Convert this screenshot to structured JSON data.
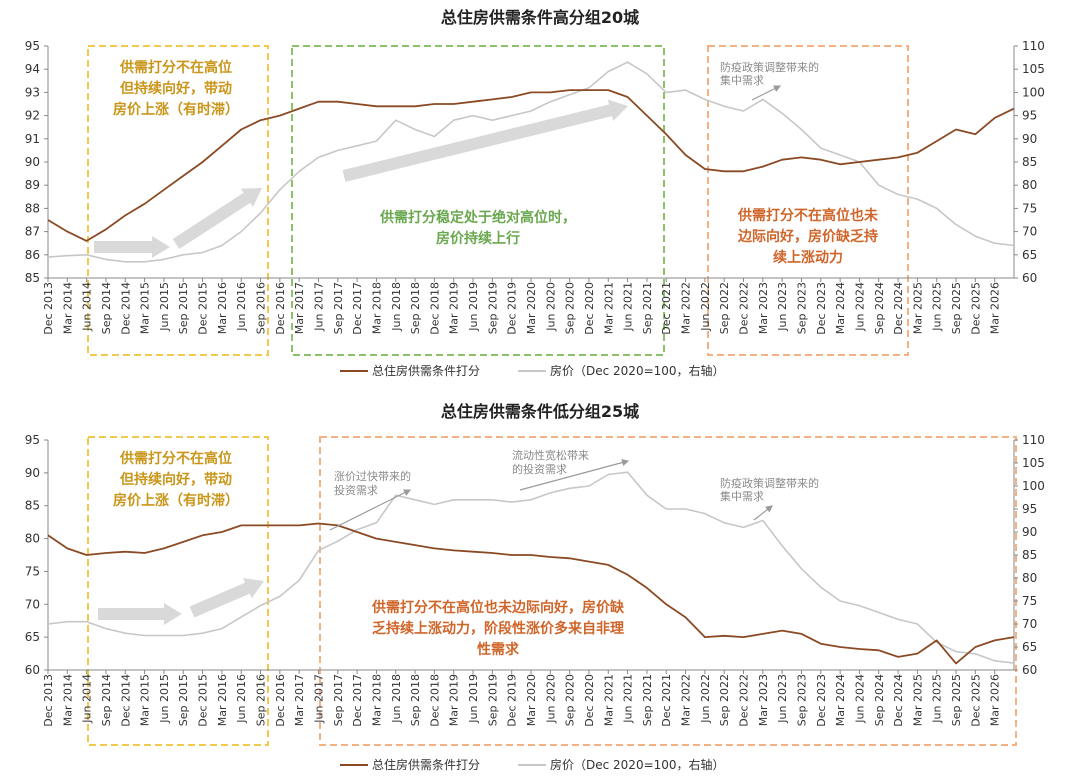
{
  "colors": {
    "score": "#8B4A24",
    "price": "#C7C7C7",
    "yellow": "#F2C94C",
    "yellow_text": "#C9961A",
    "green": "#8CC26A",
    "green_text": "#6AA84F",
    "orange": "#F4B183",
    "orange_text": "#D0652A",
    "grey_text": "#8A8A8A",
    "arrow": "#D9D9D9"
  },
  "x_labels": [
    "Dec 2013",
    "Mar 2014",
    "Jun 2014",
    "Sep 2014",
    "Dec 2014",
    "Mar 2015",
    "Jun 2015",
    "Sep 2015",
    "Dec 2015",
    "Mar 2016",
    "Jun 2016",
    "Sep 2016",
    "Dec 2016",
    "Mar 2017",
    "Jun 2017",
    "Sep 2017",
    "Dec 2017",
    "Mar 2018",
    "Jun 2018",
    "Sep 2018",
    "Dec 2018",
    "Mar 2019",
    "Jun 2019",
    "Sep 2019",
    "Dec 2019",
    "Mar 2020",
    "Jun 2020",
    "Sep 2020",
    "Dec 2020",
    "Mar 2021",
    "Jun 2021",
    "Sep 2021",
    "Dec 2021",
    "Mar 2022",
    "Jun 2022",
    "Sep 2022",
    "Dec 2022",
    "Mar 2023",
    "Jun 2023",
    "Sep 2023",
    "Dec 2023",
    "Mar 2024",
    "Jun 2024",
    "Sep 2024",
    "Dec 2024",
    "Mar 2025",
    "Jun 2025",
    "Sep 2025",
    "Dec 2025",
    "Mar 2026"
  ],
  "x_labels_bottom": [
    "Dec 2013",
    "Mar 2014",
    "Jun 2014",
    "Sep 2014",
    "Dec 2014",
    "Mar 2015",
    "Jun 2015",
    "Sep 2015",
    "Dec 2015",
    "Mar 2016",
    "Jun 2016",
    "Sep 2016",
    "Dec 2016",
    "Mar 2017",
    "Jun 2017",
    "Sep 2017",
    "Dec 2017",
    "Mar 2018",
    "Jun 2018",
    "Sep 2018",
    "Dec 2018",
    "Mar 2019",
    "Jun 2019",
    "Sep 2019",
    "Dec 2019",
    "Mar 2020",
    "Jun 2020",
    "Sep 2020",
    "Dec 2020",
    "Mar 2021",
    "Jun 2021",
    "Sep 2021",
    "Dec 2021",
    "Mar 2022",
    "Jun 2022",
    "Sep 2022",
    "Dec 2022",
    "Mar 2023",
    "Jun 2023",
    "Sep 2023",
    "Dec 2023",
    "Mar 2024",
    "Jun 2024",
    "Sep 2024",
    "Dec 2024",
    "Mar 2025",
    "Jun 2025",
    "Sep 2025",
    "Dec 2025",
    "Mar 2026"
  ],
  "chart_data": [
    {
      "type": "line",
      "title": "总住房供需条件高分组20城",
      "x": [
        "2013-12",
        "2014-03",
        "2014-06",
        "2014-09",
        "2014-12",
        "2015-03",
        "2015-06",
        "2015-09",
        "2015-12",
        "2016-03",
        "2016-06",
        "2016-09",
        "2016-12",
        "2017-03",
        "2017-06",
        "2017-09",
        "2017-12",
        "2018-03",
        "2018-06",
        "2018-09",
        "2018-12",
        "2019-03",
        "2019-06",
        "2019-09",
        "2019-12",
        "2020-03",
        "2020-06",
        "2020-09",
        "2020-12",
        "2021-03",
        "2021-06",
        "2021-09",
        "2021-12",
        "2022-03",
        "2022-06",
        "2022-09",
        "2022-12",
        "2023-03",
        "2023-06",
        "2023-09",
        "2023-12",
        "2024-03",
        "2024-06",
        "2024-09",
        "2024-12",
        "2025-03",
        "2025-06",
        "2025-09",
        "2025-12",
        "2026-03",
        "2026-04"
      ],
      "ylim": [
        85,
        95
      ],
      "y2lim": [
        60,
        110
      ],
      "yticks": [
        85,
        86,
        87,
        88,
        89,
        90,
        91,
        92,
        93,
        94,
        95
      ],
      "y2ticks": [
        60,
        65,
        70,
        75,
        80,
        85,
        90,
        95,
        100,
        105,
        110
      ],
      "series": [
        {
          "name": "总住房供需条件打分",
          "axis": "left",
          "values": [
            87.5,
            87.0,
            86.6,
            87.1,
            87.7,
            88.2,
            88.8,
            89.4,
            90.0,
            90.7,
            91.4,
            91.8,
            92.0,
            92.3,
            92.6,
            92.6,
            92.5,
            92.4,
            92.4,
            92.4,
            92.5,
            92.5,
            92.6,
            92.7,
            92.8,
            93.0,
            93.0,
            93.1,
            93.1,
            93.1,
            92.8,
            92.0,
            91.2,
            90.3,
            89.7,
            89.6,
            89.6,
            89.8,
            90.1,
            90.2,
            90.1,
            89.9,
            90.0,
            90.1,
            90.2,
            90.4,
            90.9,
            91.4,
            91.2,
            91.9,
            92.3
          ]
        },
        {
          "name": "房价（Dec 2020=100，右轴）",
          "axis": "right",
          "values": [
            64.5,
            64.8,
            65.0,
            64.0,
            63.5,
            63.5,
            64.0,
            65.0,
            65.5,
            67.0,
            70.0,
            74.0,
            79.0,
            83.0,
            86.0,
            87.5,
            88.5,
            89.5,
            94.0,
            92.0,
            90.5,
            94.0,
            95.0,
            94.0,
            95.0,
            96.0,
            98.0,
            99.5,
            101.0,
            104.5,
            106.5,
            104.0,
            100.0,
            100.5,
            98.5,
            97.0,
            96.0,
            98.5,
            95.5,
            92.0,
            88.0,
            86.5,
            85.0,
            80.0,
            78.0,
            77.0,
            75.0,
            71.5,
            69.0,
            67.5,
            67.0
          ]
        }
      ],
      "annotations": [
        {
          "text": [
            "供需打分不在高位",
            "但持续向好，带动",
            "房价上涨（有时滞）"
          ],
          "color": "yellow_text"
        },
        {
          "text": [
            "供需打分稳定处于绝对高位时，",
            "房价持续上行"
          ],
          "color": "green_text"
        },
        {
          "text": [
            "供需打分不在高位也未",
            "边际向好，房价缺乏持",
            "续上涨动力"
          ],
          "color": "orange_text"
        },
        {
          "text": [
            "防疫政策调整带来的",
            "集中需求"
          ],
          "color": "grey_text"
        }
      ]
    },
    {
      "type": "line",
      "title": "总住房供需条件低分组25城",
      "x": [
        "2013-12",
        "2014-03",
        "2014-06",
        "2014-09",
        "2014-12",
        "2015-03",
        "2015-06",
        "2015-09",
        "2015-12",
        "2016-03",
        "2016-06",
        "2016-09",
        "2016-12",
        "2017-03",
        "2017-06",
        "2017-09",
        "2017-12",
        "2018-03",
        "2018-06",
        "2018-09",
        "2018-12",
        "2019-03",
        "2019-06",
        "2019-09",
        "2019-12",
        "2020-03",
        "2020-06",
        "2020-09",
        "2020-12",
        "2021-03",
        "2021-06",
        "2021-09",
        "2021-12",
        "2022-03",
        "2022-06",
        "2022-09",
        "2022-12",
        "2023-03",
        "2023-06",
        "2023-09",
        "2023-12",
        "2024-03",
        "2024-06",
        "2024-09",
        "2024-12",
        "2025-03",
        "2025-06",
        "2025-09",
        "2025-12",
        "2026-03",
        "2026-04"
      ],
      "ylim": [
        60,
        95
      ],
      "y2lim": [
        60,
        110
      ],
      "yticks": [
        60,
        65,
        70,
        75,
        80,
        85,
        90,
        95
      ],
      "y2ticks": [
        60,
        65,
        70,
        75,
        80,
        85,
        90,
        95,
        100,
        105,
        110
      ],
      "series": [
        {
          "name": "总住房供需条件打分",
          "axis": "left",
          "values": [
            80.5,
            78.5,
            77.5,
            77.8,
            78.0,
            77.8,
            78.5,
            79.5,
            80.5,
            81.0,
            82.0,
            82.0,
            82.0,
            82.0,
            82.3,
            82.0,
            81.0,
            80.0,
            79.5,
            79.0,
            78.5,
            78.2,
            78.0,
            77.8,
            77.5,
            77.5,
            77.2,
            77.0,
            76.5,
            76.0,
            74.5,
            72.5,
            70.0,
            68.0,
            65.0,
            65.2,
            65.0,
            65.5,
            66.0,
            65.5,
            64.0,
            63.5,
            63.2,
            63.0,
            62.0,
            62.5,
            64.5,
            61.0,
            63.5,
            64.5,
            65.0
          ]
        },
        {
          "name": "房价（Dec 2020=100，右轴）",
          "axis": "right",
          "values": [
            70.0,
            70.5,
            70.5,
            69.0,
            68.0,
            67.5,
            67.5,
            67.5,
            68.0,
            69.0,
            71.5,
            74.0,
            76.0,
            79.5,
            86.0,
            88.0,
            90.5,
            92.0,
            98.0,
            97.0,
            96.0,
            97.0,
            97.0,
            97.0,
            96.5,
            97.0,
            98.5,
            99.5,
            100.0,
            102.5,
            103.0,
            98.0,
            95.0,
            95.0,
            94.0,
            92.0,
            91.0,
            92.5,
            87.0,
            82.0,
            78.0,
            75.0,
            74.0,
            72.5,
            71.0,
            70.0,
            66.0,
            64.0,
            63.5,
            62.0,
            61.5
          ]
        }
      ],
      "annotations": [
        {
          "text": [
            "供需打分不在高位",
            "但持续向好，带动",
            "房价上涨（有时滞）"
          ],
          "color": "yellow_text"
        },
        {
          "text": [
            "供需打分不在高位也未边际向好，房价缺",
            "乏持续上涨动力，阶段性涨价多来自非理",
            "性需求"
          ],
          "color": "orange_text"
        },
        {
          "text": [
            "涨价过快带来的",
            "投资需求"
          ],
          "color": "grey_text"
        },
        {
          "text": [
            "流动性宽松带来",
            "的投资需求"
          ],
          "color": "grey_text"
        },
        {
          "text": [
            "防疫政策调整带来的",
            "集中需求"
          ],
          "color": "grey_text"
        }
      ]
    }
  ]
}
